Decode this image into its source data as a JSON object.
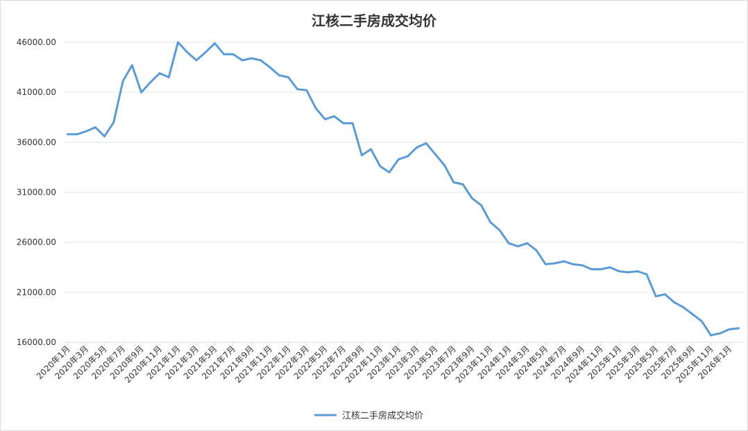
{
  "chart_data": {
    "type": "line",
    "title": "江核二手房成交均价",
    "xlabel": "",
    "ylabel": "",
    "ylim": [
      16000,
      46000
    ],
    "yticks": [
      "16000.00",
      "21000.00",
      "26000.00",
      "31000.00",
      "36000.00",
      "41000.00",
      "46000.00"
    ],
    "grid": true,
    "legend_position": "bottom",
    "line_color": "#5b9bd5",
    "x": [
      "2020年1月",
      "2020年2月",
      "2020年3月",
      "2020年4月",
      "2020年5月",
      "2020年6月",
      "2020年7月",
      "2020年8月",
      "2020年9月",
      "2020年10月",
      "2020年11月",
      "2020年12月",
      "2021年1月",
      "2021年2月",
      "2021年3月",
      "2021年4月",
      "2021年5月",
      "2021年6月",
      "2021年7月",
      "2021年8月",
      "2021年9月",
      "2021年10月",
      "2021年11月",
      "2021年12月",
      "2022年1月",
      "2022年2月",
      "2022年3月",
      "2022年4月",
      "2022年5月",
      "2022年6月",
      "2022年7月",
      "2022年8月",
      "2022年9月",
      "2022年10月",
      "2022年11月",
      "2022年12月",
      "2023年1月",
      "2023年2月",
      "2023年3月",
      "2023年4月",
      "2023年5月",
      "2023年6月",
      "2023年7月",
      "2023年8月",
      "2023年9月",
      "2023年10月",
      "2023年11月",
      "2023年12月",
      "2024年1月",
      "2024年2月",
      "2024年3月",
      "2024年4月",
      "2024年5月",
      "2024年6月",
      "2024年7月",
      "2024年8月",
      "2024年9月",
      "2024年10月",
      "2024年11月",
      "2024年12月",
      "2025年1月",
      "2025年2月",
      "2025年3月",
      "2025年4月",
      "2025年5月",
      "2025年6月",
      "2025年7月",
      "2025年8月",
      "2025年9月",
      "2025年10月",
      "2025年11月",
      "2025年12月",
      "2026年1月",
      "2026年2月"
    ],
    "xtick_labels": [
      "2020年1月",
      "2020年3月",
      "2020年5月",
      "2020年7月",
      "2020年9月",
      "2020年11月",
      "2021年1月",
      "2021年3月",
      "2021年5月",
      "2021年7月",
      "2021年9月",
      "2021年11月",
      "2022年1月",
      "2022年3月",
      "2022年5月",
      "2022年7月",
      "2022年9月",
      "2022年11月",
      "2023年1月",
      "2023年3月",
      "2023年5月",
      "2023年7月",
      "2023年9月",
      "2023年11月",
      "2024年1月",
      "2024年3月",
      "2024年5月",
      "2024年7月",
      "2024年9月",
      "2024年11月",
      "2025年1月",
      "2025年3月",
      "2025年5月",
      "2025年7月",
      "2025年9月",
      "2025年11月",
      "2026年1月"
    ],
    "series": [
      {
        "name": "江核二手房成交均价",
        "values": [
          36800,
          36800,
          37100,
          37500,
          36600,
          38000,
          42100,
          43700,
          41000,
          42000,
          42900,
          42500,
          46000,
          45000,
          44200,
          45000,
          45900,
          44800,
          44800,
          44200,
          44400,
          44200,
          43500,
          42700,
          42500,
          41300,
          41200,
          39400,
          38300,
          38600,
          37900,
          37900,
          34700,
          35300,
          33600,
          33000,
          34300,
          34600,
          35500,
          35900,
          34800,
          33700,
          32000,
          31800,
          30400,
          29700,
          28000,
          27200,
          25900,
          25600,
          25900,
          25200,
          23800,
          23900,
          24100,
          23800,
          23700,
          23300,
          23300,
          23500,
          23100,
          23000,
          23100,
          22800,
          20600,
          20800,
          20000,
          19500,
          18800,
          18100,
          16700,
          16900,
          17300,
          17400
        ]
      }
    ]
  }
}
